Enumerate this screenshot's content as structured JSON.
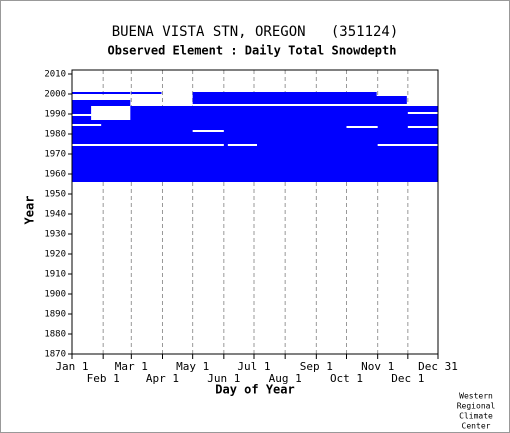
{
  "chart_data": {
    "type": "coverage",
    "title": "BUENA VISTA STN, OREGON   (351124)",
    "subtitle": "Observed Element : Daily Total Snowdepth",
    "x_label": "Day of Year",
    "y_label": "Year",
    "footer": [
      "Western",
      "Regional",
      "Climate",
      "Center"
    ],
    "xlim": [
      1,
      365
    ],
    "xticks": [
      {
        "value": 1,
        "label": "Jan 1"
      },
      {
        "value": 32,
        "label": "Feb 1"
      },
      {
        "value": 60,
        "label": "Mar 1"
      },
      {
        "value": 91,
        "label": "Apr 1"
      },
      {
        "value": 121,
        "label": "May 1"
      },
      {
        "value": 152,
        "label": "Jun 1"
      },
      {
        "value": 182,
        "label": "Jul 1"
      },
      {
        "value": 213,
        "label": "Aug 1"
      },
      {
        "value": 244,
        "label": "Sep 1"
      },
      {
        "value": 274,
        "label": "Oct 1"
      },
      {
        "value": 305,
        "label": "Nov 1"
      },
      {
        "value": 335,
        "label": "Dec 1"
      },
      {
        "value": 365,
        "label": "Dec 31"
      }
    ],
    "ylim": [
      1870,
      2010
    ],
    "yticks": [
      1870,
      1880,
      1890,
      1900,
      1910,
      1920,
      1930,
      1940,
      1950,
      1960,
      1970,
      1980,
      1990,
      2000,
      2010
    ],
    "grid": true,
    "color": "#0000ff",
    "gap_color": "#ffffff",
    "blocks": [
      [
        1,
        365,
        1956,
        1994
      ],
      [
        1,
        59,
        1994,
        1998
      ],
      [
        1,
        59,
        2000,
        2001
      ],
      [
        60,
        90,
        2000,
        2001
      ],
      [
        121,
        304,
        1995,
        2001
      ],
      [
        244,
        334,
        1995,
        1999
      ],
      [
        305,
        365,
        1993,
        1994
      ]
    ],
    "gaps": [
      [
        1,
        152,
        1974,
        1975
      ],
      [
        156,
        185,
        1974,
        1975
      ],
      [
        305,
        365,
        1974,
        1975
      ],
      [
        121,
        152,
        1981,
        1982
      ],
      [
        274,
        305,
        1983,
        1984
      ],
      [
        335,
        365,
        1983,
        1984
      ],
      [
        1,
        30,
        1984,
        1985
      ],
      [
        20,
        59,
        1987,
        1994
      ],
      [
        1,
        30,
        1989,
        1990
      ],
      [
        1,
        59,
        1997,
        1998
      ],
      [
        121,
        365,
        1994,
        1995
      ],
      [
        335,
        365,
        1990,
        1991
      ]
    ]
  }
}
